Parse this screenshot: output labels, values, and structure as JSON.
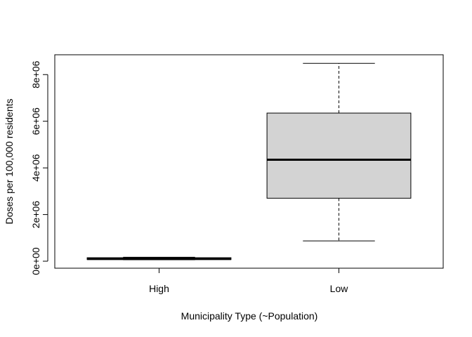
{
  "chart_data": {
    "type": "boxplot",
    "title": "",
    "xlabel": "Municipality Type (~Population)",
    "ylabel": "Doses per 100,000 residents",
    "ylim": [
      -300000,
      8850000
    ],
    "yticks": [
      0,
      2000000,
      4000000,
      6000000,
      8000000
    ],
    "ytick_labels": [
      "0e+00",
      "2e+06",
      "4e+06",
      "6e+06",
      "8e+06"
    ],
    "categories": [
      "High",
      "Low"
    ],
    "boxes": [
      {
        "category": "High",
        "min": 60000,
        "q1": 70000,
        "median": 100000,
        "q3": 150000,
        "max": 170000
      },
      {
        "category": "Low",
        "min": 870000,
        "q1": 2700000,
        "median": 4350000,
        "q3": 6350000,
        "max": 8480000
      }
    ],
    "grid": false,
    "legend": "none",
    "colors": {
      "box_fill": "#d3d3d3",
      "stroke": "#000000"
    }
  }
}
